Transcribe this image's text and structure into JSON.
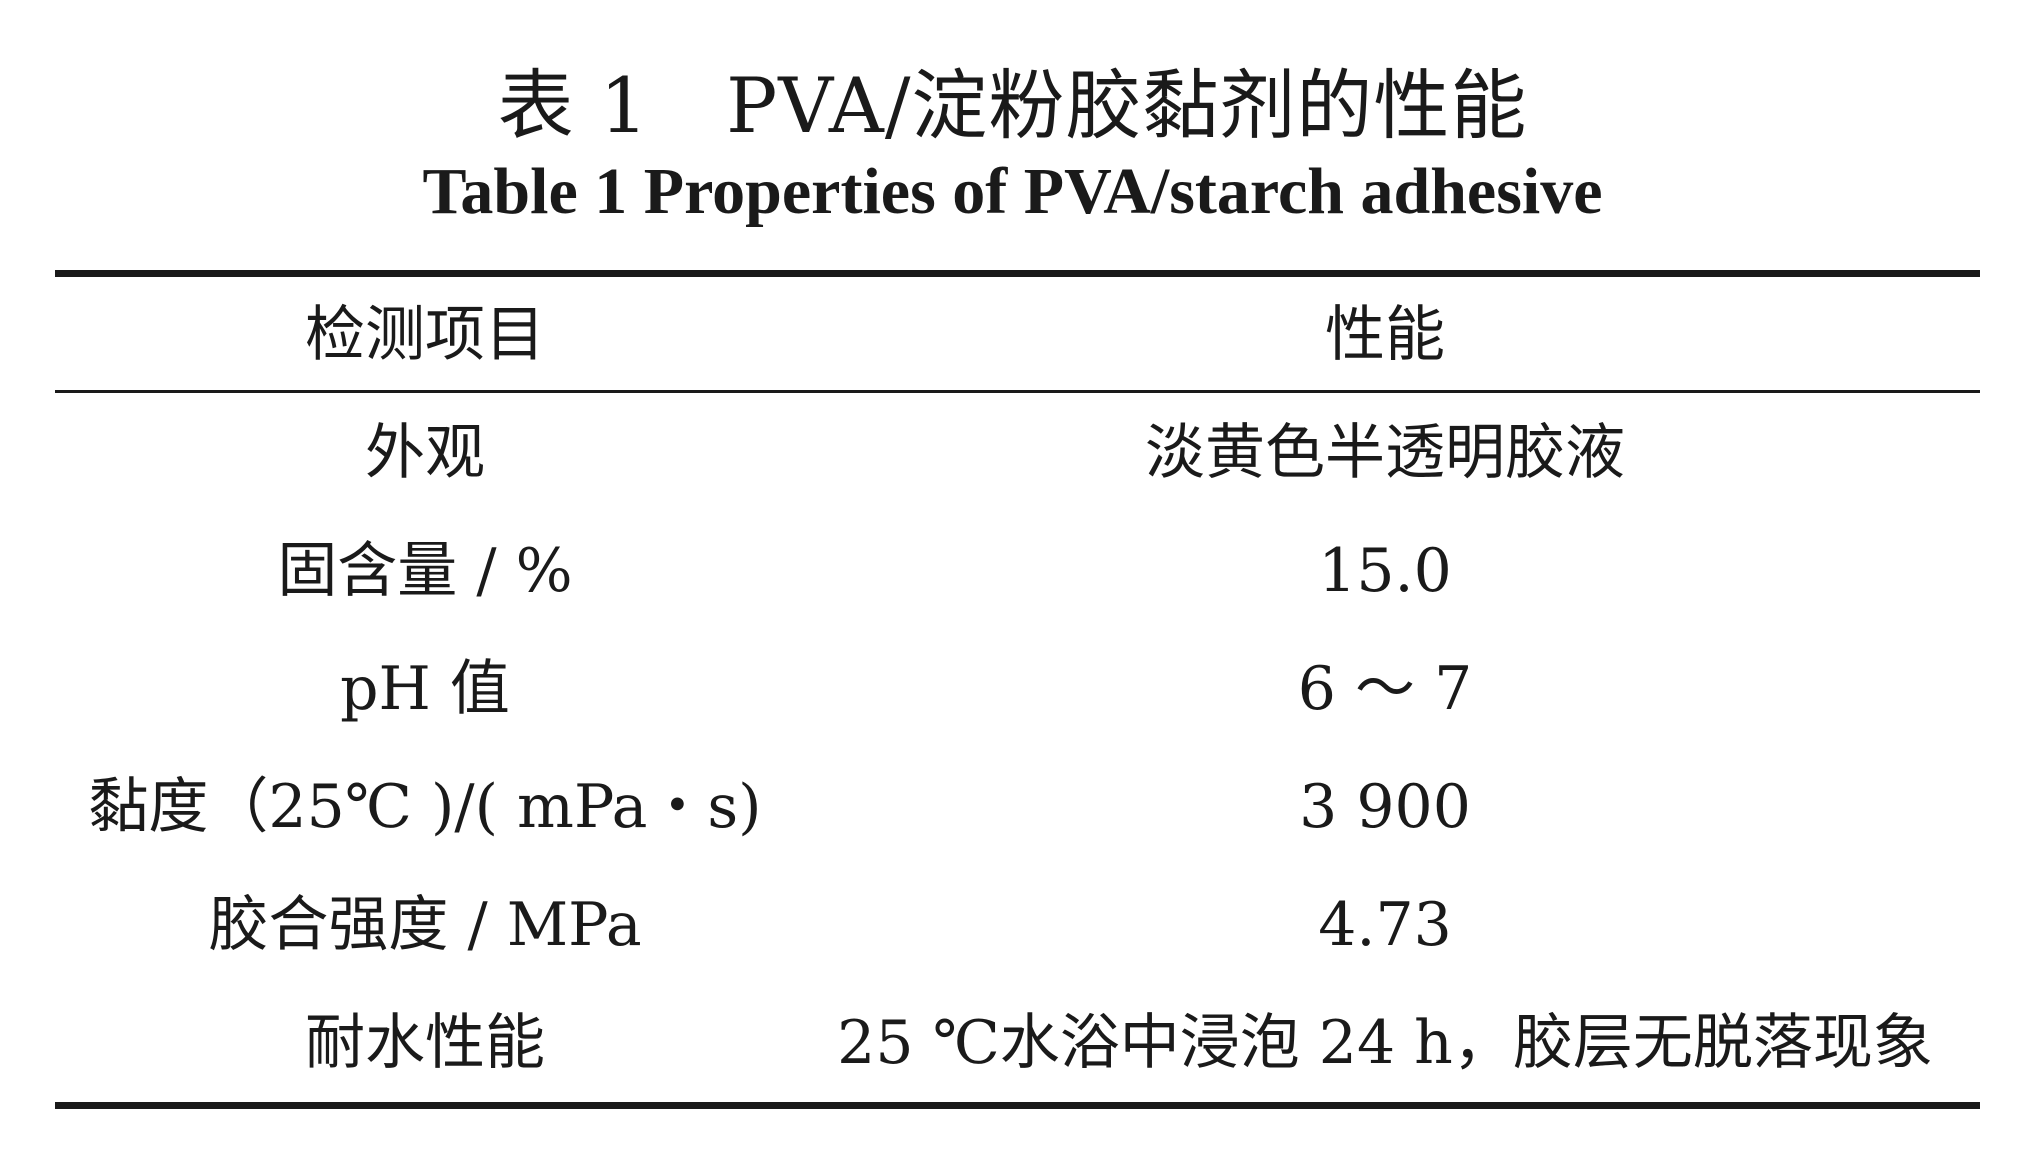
{
  "table": {
    "title_cn": "表 1　PVA/淀粉胶黏剂的性能",
    "title_en": "Table 1   Properties of PVA/starch adhesive",
    "header": {
      "item": "检测项目",
      "value": "性能"
    },
    "rows": [
      {
        "item": "外观",
        "value": "淡黄色半透明胶液"
      },
      {
        "item": "固含量 / %",
        "value": "15.0"
      },
      {
        "item": "pH 值",
        "value": "6 ～ 7"
      },
      {
        "item": "黏度（25℃ )/( mPa・s)",
        "value": "3 900"
      },
      {
        "item": "胶合强度 / MPa",
        "value": "4.73"
      },
      {
        "item": "耐水性能",
        "value": "25 ℃水浴中浸泡 24 h，胶层无脱落现象"
      }
    ]
  }
}
